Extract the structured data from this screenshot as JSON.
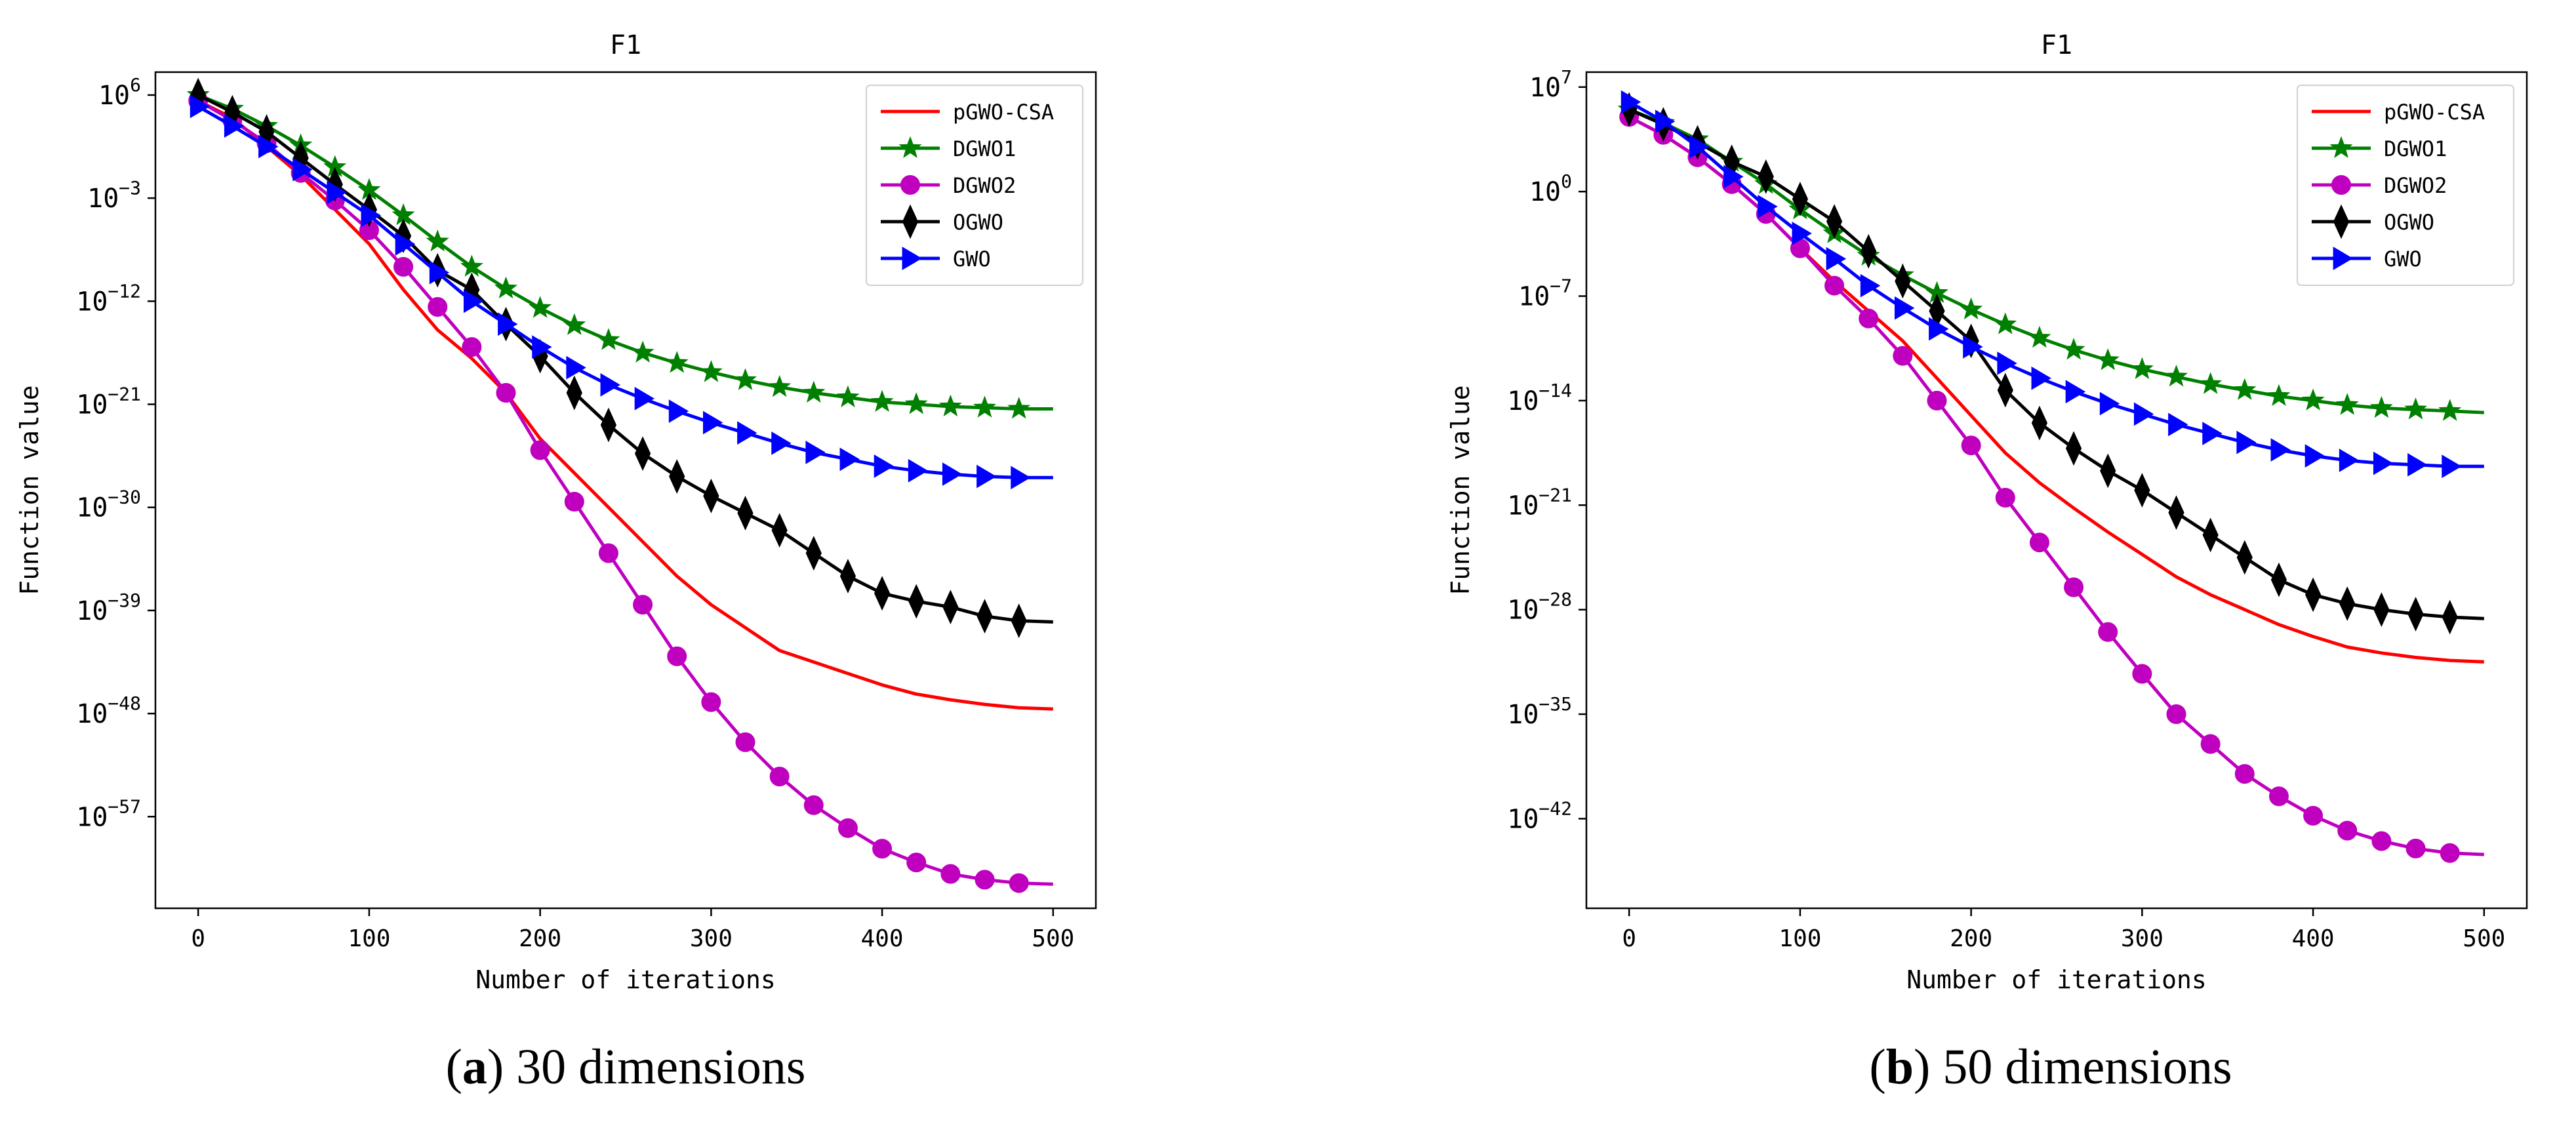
{
  "chart_data": [
    {
      "type": "line",
      "title": "F1",
      "xlabel": "Number of iterations",
      "ylabel": "Function value",
      "caption": {
        "letter": "a",
        "text": ") 30 dimensions",
        "open": "("
      },
      "yscale": "log",
      "xlim": [
        -25,
        525
      ],
      "ylog_range": [
        -65,
        8
      ],
      "xticks": [
        0,
        100,
        200,
        300,
        400,
        500
      ],
      "xtick_labels": [
        "0",
        "100",
        "200",
        "300",
        "400",
        "500"
      ],
      "yticks_exp": [
        6,
        -3,
        -12,
        -21,
        -30,
        -39,
        -48,
        -57
      ],
      "ytick_base": "10",
      "ytick_exps": [
        "6",
        "−3",
        "−12",
        "−21",
        "−30",
        "−39",
        "−48",
        "−57"
      ],
      "legend_position": "upper right",
      "series": [
        {
          "name": "pGWO-CSA",
          "color": "#ff0000",
          "marker": "none",
          "x": [
            0,
            20,
            40,
            60,
            80,
            100,
            120,
            140,
            160,
            180,
            200,
            220,
            240,
            260,
            280,
            300,
            320,
            340,
            360,
            380,
            400,
            420,
            440,
            460,
            480,
            500
          ],
          "log10_y": [
            5.5,
            4.0,
            1.5,
            -1.0,
            -4.0,
            -7.0,
            -11.0,
            -14.5,
            -17.0,
            -20.0,
            -24.0,
            -27.0,
            -30.0,
            -33.0,
            -36.0,
            -38.5,
            -40.5,
            -42.5,
            -43.5,
            -44.5,
            -45.5,
            -46.3,
            -46.8,
            -47.2,
            -47.5,
            -47.6
          ]
        },
        {
          "name": "DGWO1",
          "color": "#008000",
          "marker": "star",
          "x": [
            0,
            20,
            40,
            60,
            80,
            100,
            120,
            140,
            160,
            180,
            200,
            220,
            240,
            260,
            280,
            300,
            320,
            340,
            360,
            380,
            400,
            420,
            440,
            460,
            480,
            500
          ],
          "log10_y": [
            6.0,
            4.8,
            3.3,
            1.6,
            -0.3,
            -2.3,
            -4.5,
            -6.8,
            -9.0,
            -10.9,
            -12.6,
            -14.1,
            -15.4,
            -16.5,
            -17.4,
            -18.2,
            -18.9,
            -19.5,
            -20.0,
            -20.4,
            -20.8,
            -21.0,
            -21.2,
            -21.3,
            -21.4,
            -21.4
          ]
        },
        {
          "name": "DGWO2",
          "color": "#bf00bf",
          "marker": "circle",
          "x": [
            0,
            20,
            40,
            60,
            80,
            100,
            120,
            140,
            160,
            180,
            200,
            220,
            240,
            260,
            280,
            300,
            320,
            340,
            360,
            380,
            400,
            420,
            440,
            460,
            480,
            500
          ],
          "log10_y": [
            5.5,
            3.8,
            1.8,
            -0.8,
            -3.2,
            -5.8,
            -9.0,
            -12.5,
            -16.0,
            -20.0,
            -25.0,
            -29.5,
            -34.0,
            -38.5,
            -43.0,
            -47.0,
            -50.5,
            -53.5,
            -56.0,
            -58.0,
            -59.8,
            -61.0,
            -62.0,
            -62.5,
            -62.8,
            -62.9
          ]
        },
        {
          "name": "OGWO",
          "color": "#000000",
          "marker": "thin_diamond",
          "x": [
            0,
            20,
            40,
            60,
            80,
            100,
            120,
            140,
            160,
            180,
            200,
            220,
            240,
            260,
            280,
            300,
            320,
            340,
            360,
            380,
            400,
            420,
            440,
            460,
            480,
            500
          ],
          "log10_y": [
            6.0,
            4.5,
            2.8,
            0.5,
            -1.8,
            -4.0,
            -6.3,
            -9.3,
            -11.0,
            -14.0,
            -16.8,
            -20.0,
            -22.8,
            -25.3,
            -27.3,
            -29.0,
            -30.5,
            -32.0,
            -34.0,
            -36.0,
            -37.5,
            -38.2,
            -38.7,
            -39.5,
            -39.9,
            -40.0
          ]
        },
        {
          "name": "GWO",
          "color": "#0000ff",
          "marker": "triangle_right",
          "x": [
            0,
            20,
            40,
            60,
            80,
            100,
            120,
            140,
            160,
            180,
            200,
            220,
            240,
            260,
            280,
            300,
            320,
            340,
            360,
            380,
            400,
            420,
            440,
            460,
            480,
            500
          ],
          "log10_y": [
            5.0,
            3.3,
            1.5,
            -0.5,
            -2.5,
            -4.5,
            -7.0,
            -9.5,
            -12.0,
            -14.0,
            -16.0,
            -17.8,
            -19.3,
            -20.5,
            -21.6,
            -22.6,
            -23.5,
            -24.4,
            -25.2,
            -25.8,
            -26.4,
            -26.8,
            -27.1,
            -27.3,
            -27.4,
            -27.4
          ]
        }
      ]
    },
    {
      "type": "line",
      "title": "F1",
      "xlabel": "Number of iterations",
      "ylabel": "Function value",
      "caption": {
        "letter": "b",
        "text": ") 50 dimensions",
        "open": "("
      },
      "yscale": "log",
      "xlim": [
        -25,
        525
      ],
      "ylog_range": [
        -48,
        8
      ],
      "xticks": [
        0,
        100,
        200,
        300,
        400,
        500
      ],
      "xtick_labels": [
        "0",
        "100",
        "200",
        "300",
        "400",
        "500"
      ],
      "yticks_exp": [
        7,
        0,
        -7,
        -14,
        -21,
        -28,
        -35,
        -42
      ],
      "ytick_base": "10",
      "ytick_exps": [
        "7",
        "0",
        "−7",
        "−14",
        "−21",
        "−28",
        "−35",
        "−42"
      ],
      "legend_position": "upper right",
      "series": [
        {
          "name": "pGWO-CSA",
          "color": "#ff0000",
          "marker": "none",
          "x": [
            0,
            20,
            40,
            60,
            80,
            100,
            120,
            140,
            160,
            180,
            200,
            220,
            240,
            260,
            280,
            300,
            320,
            340,
            360,
            380,
            400,
            420,
            440,
            460,
            480,
            500
          ],
          "log10_y": [
            5.0,
            3.8,
            2.3,
            0.5,
            -1.5,
            -3.8,
            -6.0,
            -8.0,
            -10.0,
            -12.5,
            -15.0,
            -17.5,
            -19.5,
            -21.2,
            -22.8,
            -24.3,
            -25.8,
            -27.0,
            -28.0,
            -29.0,
            -29.8,
            -30.5,
            -30.9,
            -31.2,
            -31.4,
            -31.5
          ]
        },
        {
          "name": "DGWO1",
          "color": "#008000",
          "marker": "star",
          "x": [
            0,
            20,
            40,
            60,
            80,
            100,
            120,
            140,
            160,
            180,
            200,
            220,
            240,
            260,
            280,
            300,
            320,
            340,
            360,
            380,
            400,
            420,
            440,
            460,
            480,
            500
          ],
          "log10_y": [
            5.5,
            4.6,
            3.5,
            2.0,
            0.5,
            -1.2,
            -2.8,
            -4.3,
            -5.6,
            -6.8,
            -7.9,
            -8.9,
            -9.8,
            -10.6,
            -11.3,
            -11.9,
            -12.4,
            -12.9,
            -13.3,
            -13.7,
            -14.0,
            -14.3,
            -14.5,
            -14.6,
            -14.7,
            -14.8
          ]
        },
        {
          "name": "DGWO2",
          "color": "#bf00bf",
          "marker": "circle",
          "x": [
            0,
            20,
            40,
            60,
            80,
            100,
            120,
            140,
            160,
            180,
            200,
            220,
            240,
            260,
            280,
            300,
            320,
            340,
            360,
            380,
            400,
            420,
            440,
            460,
            480,
            500
          ],
          "log10_y": [
            5.0,
            3.8,
            2.3,
            0.5,
            -1.5,
            -3.8,
            -6.3,
            -8.5,
            -11.0,
            -14.0,
            -17.0,
            -20.5,
            -23.5,
            -26.5,
            -29.5,
            -32.3,
            -35.0,
            -37.0,
            -39.0,
            -40.5,
            -41.8,
            -42.8,
            -43.5,
            -44.0,
            -44.3,
            -44.4
          ]
        },
        {
          "name": "OGWO",
          "color": "#000000",
          "marker": "thin_diamond",
          "x": [
            0,
            20,
            40,
            60,
            80,
            100,
            120,
            140,
            160,
            180,
            200,
            220,
            240,
            260,
            280,
            300,
            320,
            340,
            360,
            380,
            400,
            420,
            440,
            460,
            480,
            500
          ],
          "log10_y": [
            5.5,
            4.5,
            3.3,
            2.0,
            1.0,
            -0.5,
            -2.0,
            -4.0,
            -6.0,
            -8.0,
            -10.0,
            -13.3,
            -15.5,
            -17.2,
            -18.7,
            -20.0,
            -21.5,
            -23.0,
            -24.5,
            -26.0,
            -27.0,
            -27.6,
            -28.0,
            -28.3,
            -28.5,
            -28.6
          ]
        },
        {
          "name": "GWO",
          "color": "#0000ff",
          "marker": "triangle_right",
          "x": [
            0,
            20,
            40,
            60,
            80,
            100,
            120,
            140,
            160,
            180,
            200,
            220,
            240,
            260,
            280,
            300,
            320,
            340,
            360,
            380,
            400,
            420,
            440,
            460,
            480,
            500
          ],
          "log10_y": [
            6.0,
            4.7,
            3.0,
            1.0,
            -1.0,
            -2.8,
            -4.5,
            -6.3,
            -7.8,
            -9.2,
            -10.4,
            -11.5,
            -12.5,
            -13.4,
            -14.2,
            -14.9,
            -15.6,
            -16.2,
            -16.8,
            -17.3,
            -17.7,
            -18.0,
            -18.2,
            -18.3,
            -18.4,
            -18.4
          ]
        }
      ]
    }
  ]
}
